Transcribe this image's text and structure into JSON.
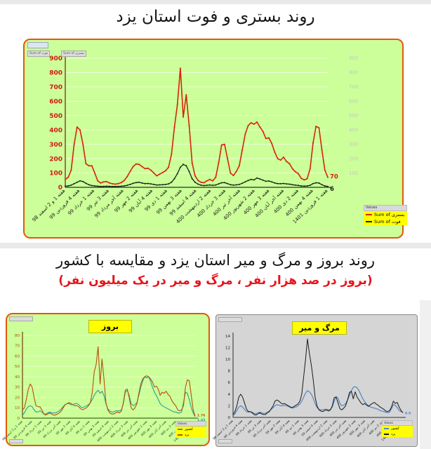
{
  "titles": {
    "top": "روند بستری و فوت استان یزد",
    "middle": "روند بروز و مرگ و میر استان یزد و مقایسه با کشور",
    "middle_sub": "(بروز در صد هزار نفر ، مرگ و میر در یک میلیون نفر)"
  },
  "top_chart": {
    "field_buttons": [
      "Sum of فوت",
      "Sum of بستری"
    ],
    "legend": {
      "header": "Values",
      "rows": [
        {
          "label": "Sum of بستری",
          "color": "#d62407"
        },
        {
          "label": "Sum of فوت",
          "color": "#142814"
        }
      ]
    }
  },
  "incidence_legend": {
    "header": "Values",
    "rows": [
      {
        "label": "کشور",
        "color": "#2d9b9b"
      },
      {
        "label": "یزد",
        "color": "#b5500c"
      }
    ]
  },
  "mortality_legend": {
    "header": "Values",
    "rows": [
      {
        "label": "کشور",
        "color": "#4f86c6"
      },
      {
        "label": "یزد",
        "color": "#1a1a1a"
      }
    ]
  },
  "chart_data": [
    {
      "type": "line",
      "title": "روند بستری و فوت استان یزد",
      "ylim": [
        0,
        900
      ],
      "ystep": 100,
      "legend_position": "right",
      "background": "#ccff99",
      "categories": [
        "هفته 1 و 2 اسفند 98",
        "هفته 4 فروردین 99",
        "هفته 1 خرداد 99",
        "هفته 3 تیر 99",
        "هفته آخر مرداد 99",
        "هفته 2 مهر 99",
        "هفته 4 آبان 99",
        "هفته 1 دی 99",
        "هفته 3 بهمن 99",
        "هفته 4 اسفند 99",
        "هفته 2 اردیبهشت 400",
        "هفته 3 خرداد 400",
        "هفته آخر تیر 400",
        "هفته 2 شهریور 400",
        "هفته 3 مهر 400",
        "هفته آخر آبان 400",
        "هفته 2 دی 400",
        "هفته 4 بهمن 400",
        "هفته 1 فروردین 1401"
      ],
      "series": [
        {
          "name": "Sum of بستری",
          "color": "#d62407",
          "width": 1.6,
          "end_label": "70",
          "end_dy": 0,
          "values": [
            55,
            70,
            120,
            300,
            420,
            400,
            300,
            165,
            150,
            150,
            100,
            45,
            30,
            38,
            40,
            30,
            25,
            22,
            26,
            33,
            48,
            75,
            110,
            145,
            163,
            160,
            145,
            130,
            133,
            120,
            100,
            80,
            92,
            103,
            115,
            140,
            230,
            420,
            575,
            830,
            490,
            645,
            430,
            170,
            80,
            48,
            35,
            32,
            45,
            55,
            45,
            70,
            170,
            295,
            300,
            200,
            100,
            82,
            110,
            150,
            260,
            370,
            430,
            450,
            440,
            455,
            420,
            390,
            340,
            345,
            305,
            245,
            200,
            190,
            210,
            180,
            165,
            130,
            108,
            95,
            62,
            52,
            60,
            130,
            310,
            425,
            415,
            260,
            120,
            70
          ]
        },
        {
          "name": "Sum of فوت",
          "color": "#142814",
          "width": 1.3,
          "end_label": "6",
          "end_dy": 4,
          "values": [
            8,
            10,
            15,
            25,
            35,
            45,
            40,
            28,
            18,
            12,
            10,
            8,
            6,
            7,
            8,
            7,
            6,
            6,
            7,
            8,
            10,
            14,
            20,
            28,
            33,
            35,
            30,
            26,
            27,
            24,
            20,
            16,
            17,
            18,
            20,
            24,
            35,
            60,
            95,
            140,
            160,
            150,
            110,
            60,
            35,
            22,
            15,
            12,
            14,
            16,
            14,
            16,
            24,
            32,
            33,
            26,
            18,
            15,
            17,
            20,
            28,
            38,
            48,
            55,
            52,
            65,
            58,
            50,
            42,
            44,
            38,
            30,
            26,
            25,
            27,
            24,
            22,
            18,
            15,
            13,
            10,
            9,
            10,
            14,
            26,
            32,
            30,
            18,
            10,
            6
          ]
        }
      ]
    },
    {
      "type": "line",
      "title": "بروز",
      "ylim": [
        0,
        80
      ],
      "ystep": 10,
      "legend_position": "bottom-right",
      "background": "#ccff99",
      "categories": [
        "هفته 1 و 2 اسفند 98",
        "هفته 4 فروردین 99",
        "هفته 1 خرداد 99",
        "هفته 3 تیر 99",
        "هفته آخر مرداد 99",
        "هفته 2 مهر 99",
        "هفته 4 آبان 99",
        "هفته 1 دی 99",
        "هفته 3 بهمن 99",
        "هفته 4 اسفند 99",
        "هفته 2 اردیبهشت 400",
        "هفته 3 خرداد 400",
        "هفته آخر تیر 400",
        "هفته 2 شهریور 400",
        "هفته 3 مهر 400",
        "هفته آخر آبان 400",
        "هفته 2 دی 400",
        "هفته 4 بهمن 400",
        "هفته 1 فروردین 1401"
      ],
      "series": [
        {
          "name": "یزد",
          "color": "#b5500c",
          "width": 1.1,
          "end_label": "1.76",
          "end_dy": -2,
          "values": [
            8,
            10,
            18,
            28,
            33,
            30,
            20,
            12,
            11,
            11,
            8,
            4,
            3,
            4,
            5,
            4,
            3,
            3,
            4,
            5,
            7,
            10,
            13,
            14,
            15,
            14,
            13,
            12,
            12,
            11,
            9,
            8,
            9,
            10,
            12,
            15,
            25,
            45,
            52,
            69,
            33,
            57,
            38,
            15,
            8,
            5,
            4,
            4,
            5,
            6,
            5,
            7,
            15,
            27,
            28,
            20,
            10,
            8,
            10,
            14,
            24,
            33,
            38,
            40,
            39,
            40,
            38,
            35,
            30,
            31,
            28,
            22,
            25,
            24,
            26,
            23,
            21,
            17,
            14,
            12,
            8,
            7,
            8,
            12,
            30,
            37,
            36,
            22,
            8,
            1.76
          ]
        },
        {
          "name": "کشور",
          "color": "#2d9b9b",
          "width": 1.1,
          "end_label": "1.43",
          "end_dy": 4,
          "values": [
            3,
            5,
            9,
            11,
            12,
            11,
            8,
            6,
            6,
            7,
            6,
            4,
            4,
            5,
            6,
            5,
            5,
            5,
            6,
            7,
            9,
            11,
            13,
            14,
            14,
            13,
            13,
            14,
            14,
            13,
            11,
            10,
            11,
            12,
            13,
            15,
            18,
            22,
            25,
            27,
            24,
            26,
            22,
            14,
            9,
            7,
            6,
            6,
            7,
            7,
            7,
            8,
            14,
            25,
            27,
            22,
            14,
            12,
            13,
            15,
            22,
            30,
            36,
            40,
            41,
            40,
            36,
            30,
            25,
            22,
            18,
            14,
            12,
            11,
            10,
            9,
            8,
            7,
            6,
            6,
            5,
            5,
            6,
            15,
            25,
            24,
            18,
            10,
            5,
            1.43
          ]
        }
      ]
    },
    {
      "type": "line",
      "title": "مرگ و میر",
      "ylim": [
        0,
        14
      ],
      "ystep": 2,
      "legend_position": "bottom-right",
      "background": "#d5d5d5",
      "categories": [
        "هفته 1 و 2 اسفند 98",
        "هفته 4 فروردین 99",
        "هفته 1 خرداد 99",
        "هفته 3 تیر 99",
        "هفته آخر مرداد 99",
        "هفته 2 مهر 99",
        "هفته 4 آبان 99",
        "هفته 1 دی 99",
        "هفته 3 بهمن 99",
        "هفته 4 اسفند 99",
        "هفته 2 اردیبهشت 400",
        "هفته 3 خرداد 400",
        "هفته آخر تیر 400",
        "هفته 2 شهریور 400",
        "هفته 3 مهر 400",
        "هفته آخر آبان 400",
        "هفته 2 دی 400",
        "هفته 4 بهمن 400",
        "هفته 1 فروردین 1401"
      ],
      "series": [
        {
          "name": "یزد",
          "color": "#1a1a1a",
          "width": 1.0,
          "values": [
            0.5,
            1,
            2,
            3.5,
            4,
            3.5,
            2.5,
            1.5,
            1,
            1,
            0.8,
            0.5,
            0.4,
            0.6,
            0.8,
            0.6,
            0.5,
            0.5,
            0.8,
            1,
            1.5,
            2,
            2.8,
            3,
            2.8,
            2.5,
            2.3,
            2.4,
            2.2,
            2,
            1.8,
            1.7,
            1.9,
            2.1,
            2.3,
            2.8,
            4,
            7,
            10,
            13.5,
            11,
            9,
            6.5,
            3.5,
            2,
            1.3,
            1.1,
            1,
            1.2,
            1.3,
            1.1,
            1.3,
            2,
            3.4,
            3.5,
            2.5,
            1.5,
            1.3,
            1.6,
            2,
            3,
            4.3,
            4.5,
            3.2,
            4.4,
            3.5,
            3,
            2.5,
            2.2,
            2.4,
            2.1,
            1.9,
            2.2,
            2.4,
            2.6,
            2.3,
            2.1,
            1.8,
            1.6,
            1.4,
            1.1,
            1,
            1.2,
            1.8,
            2.8,
            2.4,
            2.6,
            1.8,
            1.2,
            0.8
          ]
        },
        {
          "name": "کشور",
          "color": "#4f86c6",
          "width": 1.2,
          "end_label": "0.9",
          "end_dy": 1,
          "values": [
            0.3,
            0.6,
            1.2,
            1.8,
            2,
            1.8,
            1.4,
            1,
            0.9,
            1,
            0.9,
            0.7,
            0.6,
            0.8,
            0.9,
            0.8,
            0.7,
            0.7,
            0.9,
            1.1,
            1.4,
            1.7,
            2,
            2.2,
            2.1,
            2,
            2,
            2.1,
            2,
            1.9,
            1.7,
            1.6,
            1.7,
            1.8,
            2,
            2.3,
            2.8,
            3.5,
            4.2,
            4.6,
            4.4,
            4,
            3.3,
            2.4,
            1.7,
            1.4,
            1.3,
            1.3,
            1.4,
            1.4,
            1.3,
            1.4,
            1.8,
            2.8,
            3.6,
            3.3,
            2.4,
            2,
            2.1,
            2.4,
            3,
            3.8,
            4.6,
            5.2,
            5.3,
            5.1,
            4.6,
            3.9,
            3.2,
            2.7,
            2.3,
            2,
            1.8,
            1.7,
            1.6,
            1.5,
            1.4,
            1.2,
            1.1,
            1,
            0.9,
            0.8,
            0.9,
            1.5,
            2.2,
            2.1,
            1.7,
            1.2,
            1,
            0.9
          ]
        }
      ]
    }
  ]
}
